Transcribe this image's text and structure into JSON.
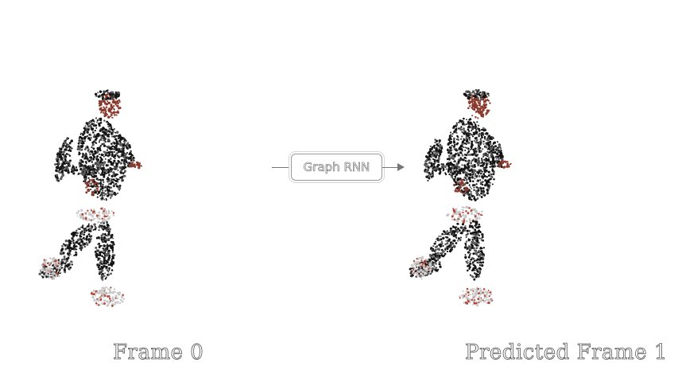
{
  "diagram": {
    "input_caption": "Frame  0",
    "process_label": "Graph RNN",
    "output_caption": "Predicted Frame 1"
  },
  "colors": {
    "cloth": "#141414",
    "skin": "#8a3a2c",
    "accent": "#b24a3c",
    "shoe": "#c8c8c8",
    "text_stroke": "#555555"
  }
}
